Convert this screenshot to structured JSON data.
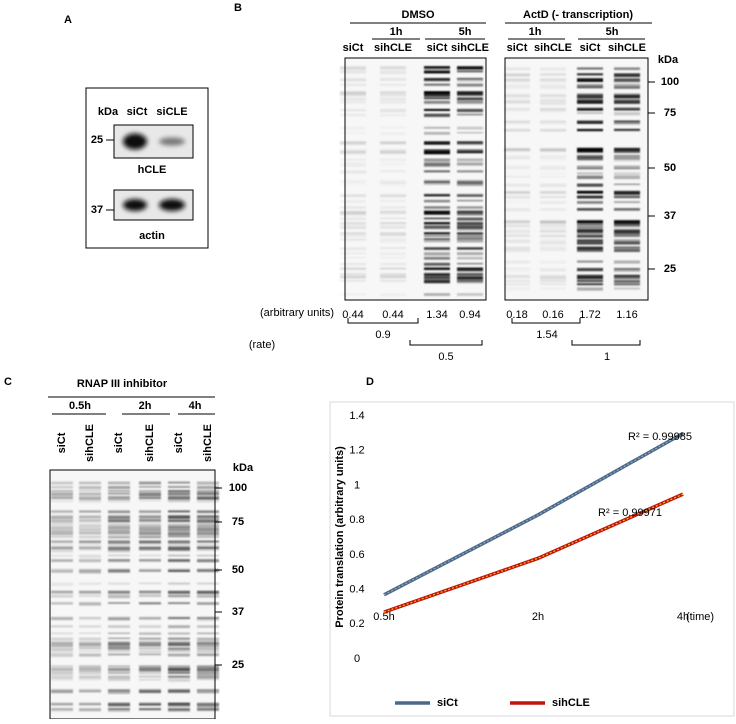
{
  "panel_a": {
    "label": "A",
    "header": [
      "kDa",
      "siCt",
      "siCLE"
    ],
    "blots": [
      {
        "marker": "25",
        "name": "hCLE"
      },
      {
        "marker": "37",
        "name": "actin"
      }
    ]
  },
  "panel_b": {
    "label": "B",
    "groups": [
      {
        "name": "DMSO",
        "times": [
          "1h",
          "5h"
        ],
        "lanes": [
          "siCt",
          "sihCLE",
          "siCt",
          "sihCLE"
        ],
        "units": [
          0.44,
          0.44,
          1.34,
          0.94
        ],
        "rates": [
          0.9,
          0.5
        ]
      },
      {
        "name": "ActD (- transcription)",
        "times": [
          "1h",
          "5h"
        ],
        "lanes": [
          "siCt",
          "sihCLE",
          "siCt",
          "sihCLE"
        ],
        "units": [
          0.18,
          0.16,
          1.72,
          1.16
        ],
        "rates": [
          1.54,
          1
        ]
      }
    ],
    "kda": "kDa",
    "markers": [
      "100",
      "75",
      "50",
      "37",
      "25"
    ],
    "units_label": "(arbitrary units)",
    "rate_label": "(rate)"
  },
  "panel_c": {
    "label": "C",
    "title": "RNAP III inhibitor",
    "times": [
      "0.5h",
      "2h",
      "4h"
    ],
    "lanes": [
      "siCt",
      "sihCLE",
      "siCt",
      "sihCLE",
      "siCt",
      "sihCLE"
    ],
    "kda": "kDa",
    "markers": [
      "100",
      "75",
      "50",
      "37",
      "25"
    ]
  },
  "panel_d": {
    "label": "D"
  },
  "chart_data": {
    "type": "line",
    "categories": [
      "0.5h",
      "2h",
      "4h"
    ],
    "x_label": "(time)",
    "y_label": "Protein translation (arbitrary units)",
    "ylim": [
      0,
      1.4
    ],
    "yticks": [
      0,
      0.2,
      0.4,
      0.6,
      0.8,
      1,
      1.2,
      1.4
    ],
    "series": [
      {
        "name": "siCt",
        "color": "#4a6a8c",
        "values": [
          0.37,
          0.83,
          1.3
        ]
      },
      {
        "name": "sihCLE",
        "color": "#c0140c",
        "values": [
          0.27,
          0.58,
          0.95
        ]
      }
    ],
    "annotations": [
      "R² = 0.99985",
      "R² = 0.99971"
    ]
  }
}
